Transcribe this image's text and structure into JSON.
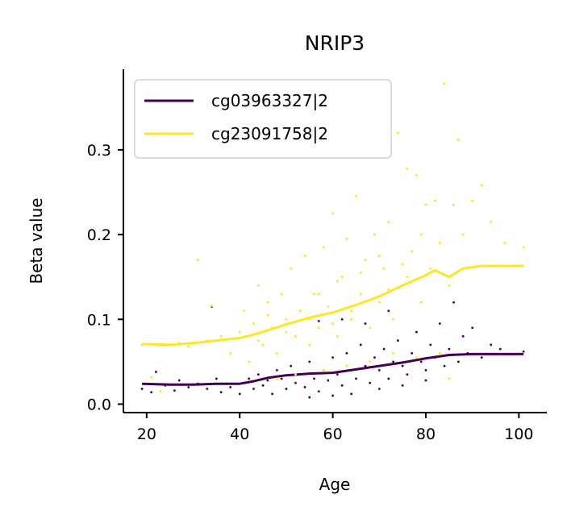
{
  "chart_data": {
    "type": "scatter",
    "title": "NRIP3",
    "xlabel": "Age",
    "ylabel": "Beta value",
    "xlim": [
      15,
      106
    ],
    "ylim": [
      -0.01,
      0.395
    ],
    "xticks": [
      20,
      40,
      60,
      80,
      100
    ],
    "yticks": [
      0.0,
      0.1,
      0.2,
      0.3
    ],
    "xtick_labels": [
      "20",
      "40",
      "60",
      "80",
      "100"
    ],
    "ytick_labels": [
      "0.0",
      "0.1",
      "0.2",
      "0.3"
    ],
    "grid": false,
    "legend_position": "top-left",
    "series": [
      {
        "name": "cg03963327|2",
        "color": "#440154",
        "marker": "dot",
        "trend": {
          "x": [
            19,
            25,
            30,
            35,
            40,
            43,
            46,
            50,
            55,
            60,
            65,
            70,
            75,
            80,
            85,
            90,
            95,
            101
          ],
          "y": [
            0.024,
            0.023,
            0.023,
            0.024,
            0.024,
            0.027,
            0.031,
            0.034,
            0.036,
            0.037,
            0.041,
            0.045,
            0.049,
            0.054,
            0.058,
            0.059,
            0.059,
            0.059
          ]
        },
        "points": [
          [
            19,
            0.018
          ],
          [
            21,
            0.014
          ],
          [
            22,
            0.038
          ],
          [
            24,
            0.022
          ],
          [
            26,
            0.016
          ],
          [
            27,
            0.028
          ],
          [
            29,
            0.02
          ],
          [
            31,
            0.024
          ],
          [
            33,
            0.018
          ],
          [
            34,
            0.115
          ],
          [
            35,
            0.03
          ],
          [
            36,
            0.014
          ],
          [
            38,
            0.02
          ],
          [
            40,
            0.012
          ],
          [
            41,
            0.025
          ],
          [
            42,
            0.03
          ],
          [
            43,
            0.018
          ],
          [
            44,
            0.035
          ],
          [
            45,
            0.022
          ],
          [
            46,
            0.028
          ],
          [
            47,
            0.012
          ],
          [
            48,
            0.04
          ],
          [
            49,
            0.03
          ],
          [
            50,
            0.018
          ],
          [
            51,
            0.045
          ],
          [
            52,
            0.025
          ],
          [
            53,
            0.035
          ],
          [
            54,
            0.02
          ],
          [
            55,
            0.05
          ],
          [
            56,
            0.03
          ],
          [
            57,
            0.015
          ],
          [
            58,
            0.04
          ],
          [
            59,
            0.028
          ],
          [
            60,
            0.055
          ],
          [
            61,
            0.035
          ],
          [
            62,
            0.022
          ],
          [
            63,
            0.06
          ],
          [
            64,
            0.04
          ],
          [
            65,
            0.03
          ],
          [
            66,
            0.07
          ],
          [
            67,
            0.045
          ],
          [
            68,
            0.025
          ],
          [
            69,
            0.055
          ],
          [
            70,
            0.04
          ],
          [
            71,
            0.065
          ],
          [
            72,
            0.03
          ],
          [
            73,
            0.05
          ],
          [
            74,
            0.075
          ],
          [
            75,
            0.045
          ],
          [
            76,
            0.035
          ],
          [
            77,
            0.06
          ],
          [
            78,
            0.085
          ],
          [
            79,
            0.05
          ],
          [
            80,
            0.04
          ],
          [
            81,
            0.07
          ],
          [
            82,
            0.055
          ],
          [
            83,
            0.095
          ],
          [
            84,
            0.045
          ],
          [
            85,
            0.065
          ],
          [
            86,
            0.12
          ],
          [
            87,
            0.05
          ],
          [
            88,
            0.08
          ],
          [
            89,
            0.06
          ],
          [
            90,
            0.09
          ],
          [
            92,
            0.055
          ],
          [
            94,
            0.07
          ],
          [
            96,
            0.065
          ],
          [
            101,
            0.062
          ],
          [
            57,
            0.098
          ],
          [
            62,
            0.1
          ],
          [
            67,
            0.095
          ],
          [
            72,
            0.11
          ],
          [
            64,
            0.012
          ],
          [
            70,
            0.018
          ],
          [
            75,
            0.022
          ],
          [
            80,
            0.028
          ],
          [
            55,
            0.008
          ],
          [
            60,
            0.01
          ]
        ]
      },
      {
        "name": "cg23091758|2",
        "color": "#fde725",
        "marker": "dot",
        "trend": {
          "x": [
            19,
            25,
            30,
            35,
            40,
            43,
            46,
            50,
            55,
            60,
            65,
            70,
            75,
            80,
            82,
            85,
            88,
            92,
            96,
            101
          ],
          "y": [
            0.071,
            0.07,
            0.072,
            0.075,
            0.078,
            0.082,
            0.087,
            0.094,
            0.102,
            0.108,
            0.117,
            0.127,
            0.14,
            0.152,
            0.158,
            0.15,
            0.16,
            0.163,
            0.163,
            0.163
          ]
        },
        "points": [
          [
            19,
            0.07
          ],
          [
            21,
            0.032
          ],
          [
            23,
            0.015
          ],
          [
            25,
            0.07
          ],
          [
            27,
            0.072
          ],
          [
            29,
            0.068
          ],
          [
            31,
            0.17
          ],
          [
            33,
            0.075
          ],
          [
            34,
            0.116
          ],
          [
            36,
            0.08
          ],
          [
            38,
            0.06
          ],
          [
            40,
            0.085
          ],
          [
            41,
            0.11
          ],
          [
            42,
            0.05
          ],
          [
            43,
            0.095
          ],
          [
            44,
            0.14
          ],
          [
            45,
            0.07
          ],
          [
            46,
            0.12
          ],
          [
            47,
            0.09
          ],
          [
            48,
            0.06
          ],
          [
            49,
            0.13
          ],
          [
            50,
            0.1
          ],
          [
            51,
            0.16
          ],
          [
            52,
            0.08
          ],
          [
            53,
            0.11
          ],
          [
            54,
            0.175
          ],
          [
            55,
            0.07
          ],
          [
            56,
            0.13
          ],
          [
            57,
            0.09
          ],
          [
            58,
            0.185
          ],
          [
            59,
            0.115
          ],
          [
            60,
            0.225
          ],
          [
            61,
            0.08
          ],
          [
            62,
            0.15
          ],
          [
            63,
            0.195
          ],
          [
            64,
            0.1
          ],
          [
            65,
            0.245
          ],
          [
            66,
            0.13
          ],
          [
            67,
            0.17
          ],
          [
            68,
            0.09
          ],
          [
            69,
            0.2
          ],
          [
            70,
            0.12
          ],
          [
            71,
            0.16
          ],
          [
            72,
            0.215
          ],
          [
            73,
            0.1
          ],
          [
            74,
            0.32
          ],
          [
            75,
            0.14
          ],
          [
            76,
            0.278
          ],
          [
            77,
            0.18
          ],
          [
            78,
            0.27
          ],
          [
            79,
            0.12
          ],
          [
            80,
            0.235
          ],
          [
            81,
            0.16
          ],
          [
            82,
            0.24
          ],
          [
            83,
            0.19
          ],
          [
            84,
            0.378
          ],
          [
            85,
            0.14
          ],
          [
            86,
            0.235
          ],
          [
            87,
            0.312
          ],
          [
            88,
            0.2
          ],
          [
            89,
            0.16
          ],
          [
            90,
            0.24
          ],
          [
            92,
            0.258
          ],
          [
            94,
            0.215
          ],
          [
            97,
            0.19
          ],
          [
            101,
            0.185
          ],
          [
            48,
            0.03
          ],
          [
            52,
            0.035
          ],
          [
            58,
            0.04
          ],
          [
            63,
            0.045
          ],
          [
            68,
            0.05
          ],
          [
            73,
            0.06
          ],
          [
            78,
            0.055
          ],
          [
            83,
            0.06
          ],
          [
            85,
            0.03
          ],
          [
            57,
            0.13
          ],
          [
            61,
            0.145
          ],
          [
            66,
            0.155
          ],
          [
            70,
            0.175
          ],
          [
            75,
            0.165
          ],
          [
            79,
            0.2
          ],
          [
            64,
            0.11
          ],
          [
            69,
            0.125
          ],
          [
            55,
            0.1
          ],
          [
            50,
            0.085
          ],
          [
            46,
            0.105
          ],
          [
            44,
            0.075
          ],
          [
            60,
            0.095
          ],
          [
            72,
            0.135
          ],
          [
            76,
            0.15
          ]
        ]
      }
    ]
  }
}
